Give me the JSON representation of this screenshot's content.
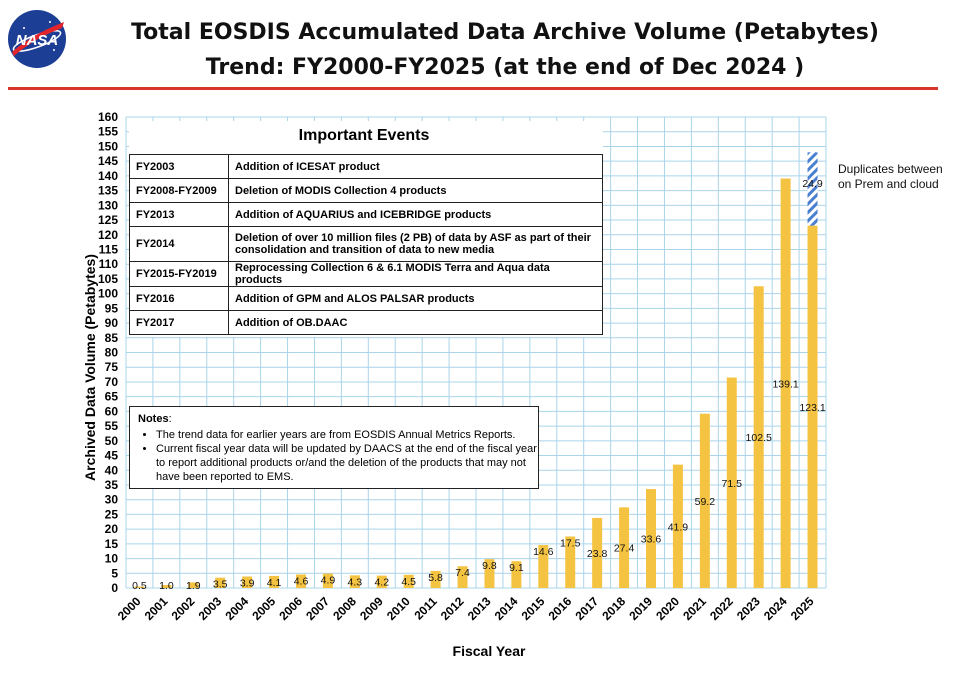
{
  "header": {
    "logo_text": "NASA",
    "title_line1": "Total EOSDIS Accumulated Data Archive Volume (Petabytes)",
    "title_line2": "Trend: FY2000-FY2025 (at the end of Dec 2024 )"
  },
  "events": {
    "heading": "Important Events",
    "rows": [
      {
        "year": "FY2003",
        "text": "Addition of ICESAT product"
      },
      {
        "year": "FY2008-FY2009",
        "text": "Deletion of  MODIS Collection 4 products"
      },
      {
        "year": "FY2013",
        "text": "Addition of AQUARIUS and ICEBRIDGE products"
      },
      {
        "year": "FY2014",
        "text": "Deletion of over 10 million files (2 PB) of data by ASF as part of their consolidation and transition of data to new media"
      },
      {
        "year": "FY2015-FY2019",
        "text": "Reprocessing  Collection 6 & 6.1 MODIS Terra and Aqua data products"
      },
      {
        "year": "FY2016",
        "text": "Addition of GPM and ALOS PALSAR products"
      },
      {
        "year": "FY2017",
        "text": "Addition of OB.DAAC"
      }
    ]
  },
  "notes": {
    "title": "Notes",
    "items": [
      "The trend data for earlier years are from EOSDIS Annual Metrics Reports.",
      "Current fiscal year data will be updated by DAACS at the end of the fiscal year to report additional products or/and the deletion of the products that may not have been reported to EMS."
    ]
  },
  "side_note": "Duplicates between on Prem and cloud",
  "chart_data": {
    "type": "bar",
    "title": "Total EOSDIS Accumulated Data Archive Volume (Petabytes)",
    "subtitle": "Trend: FY2000-FY2025 (at the end of Dec 2024 )",
    "xlabel": "Fiscal Year",
    "ylabel": "Archived Data Volume (Petabytes)",
    "ylim": [
      0,
      160
    ],
    "ytick_step": 5,
    "grid": true,
    "categories": [
      "2000",
      "2001",
      "2002",
      "2003",
      "2004",
      "2005",
      "2006",
      "2007",
      "2008",
      "2009",
      "2010",
      "2011",
      "2012",
      "2013",
      "2014",
      "2015",
      "2016",
      "2017",
      "2018",
      "2019",
      "2020",
      "2021",
      "2022",
      "2023",
      "2024",
      "2025"
    ],
    "values": [
      0.5,
      1.0,
      1.9,
      3.5,
      3.9,
      4.1,
      4.6,
      4.9,
      4.3,
      4.2,
      4.5,
      5.8,
      7.4,
      9.8,
      9.1,
      14.6,
      17.5,
      23.8,
      27.4,
      33.6,
      41.9,
      59.2,
      71.5,
      102.5,
      139.1,
      123.1
    ],
    "value_labels": [
      "0.5",
      "1.0",
      "1.9",
      "3.5",
      "3.9",
      "4.1",
      "4.6",
      "4.9",
      "4.3",
      "4.2",
      "4.5",
      "5.8",
      "7.4",
      "9.8",
      "9.1",
      "14.6",
      "17.5",
      "23.8",
      "27.4",
      "33.6",
      "41.9",
      "59.2",
      "71.5",
      "102.5",
      "139.1",
      "123.1"
    ],
    "stacked_extra": {
      "category": "2025",
      "value": 24.9,
      "label": "24.9"
    },
    "colors": {
      "bar": "#f5c342",
      "hatch": "#4a7fd0",
      "grid": "#a9d4ea",
      "title_rule": "#d9342b"
    }
  }
}
